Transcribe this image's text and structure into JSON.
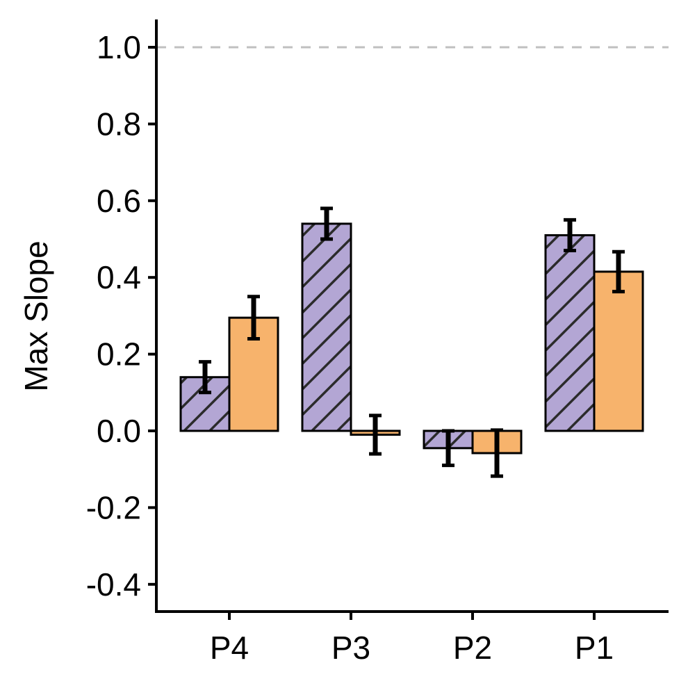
{
  "chart_data": {
    "type": "bar",
    "title": "",
    "xlabel": "",
    "ylabel": "Max Slope",
    "ylim": [
      -0.47,
      1.07
    ],
    "yticks": [
      "-0.4",
      "-0.2",
      "0.0",
      "0.2",
      "0.4",
      "0.6",
      "0.8",
      "1.0"
    ],
    "categories": [
      "P4",
      "P3",
      "P2",
      "P1"
    ],
    "reference_line": {
      "y": 1.0,
      "style": "dashed",
      "color": "#c0c0c0"
    },
    "series": [
      {
        "color": "#b3a6d4",
        "hatch": "diagonal",
        "values": [
          0.14,
          0.54,
          -0.045,
          0.51
        ],
        "error": [
          0.04,
          0.04,
          0.045,
          0.04
        ]
      },
      {
        "color": "#f7b36c",
        "hatch": "none",
        "values": [
          0.295,
          -0.01,
          -0.058,
          0.415
        ],
        "error": [
          0.055,
          0.05,
          0.06,
          0.052
        ]
      }
    ],
    "grid": false,
    "legend": "none"
  }
}
